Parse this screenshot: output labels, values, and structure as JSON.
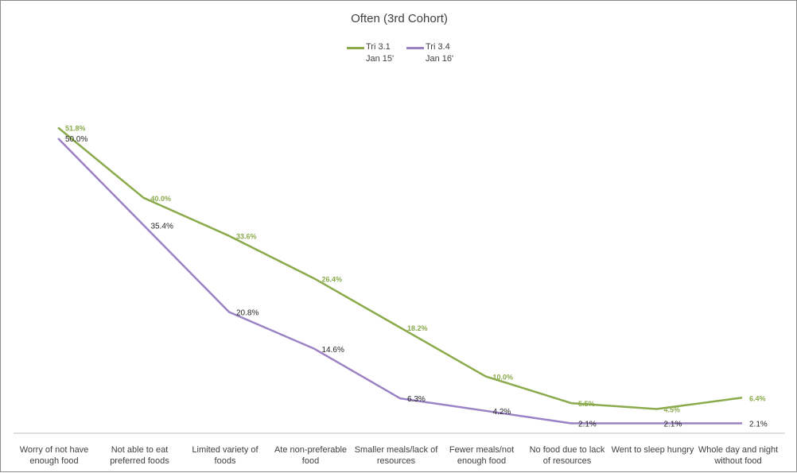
{
  "chart_data": {
    "type": "line",
    "title": "Often (3rd Cohort)",
    "categories": [
      [
        "Worry of not have",
        "enough food"
      ],
      [
        "Not able to eat",
        "preferred foods"
      ],
      [
        "Limited variety of",
        "foods"
      ],
      [
        "Ate non-preferable",
        "food"
      ],
      [
        "Smaller meals/lack of",
        "resources"
      ],
      [
        "Fewer meals/not",
        "enough food"
      ],
      [
        "No food due to lack",
        "of resources"
      ],
      [
        "Went to sleep hungry"
      ],
      [
        "Whole day and night",
        "without food"
      ]
    ],
    "series": [
      {
        "name": "Tri 3.1\nJan 15'",
        "name_lines": [
          "Tri 3.1",
          "Jan 15'"
        ],
        "color": "#8aaa4b",
        "values": [
          51.8,
          40.0,
          33.6,
          26.4,
          18.2,
          10.0,
          5.5,
          4.5,
          6.4
        ],
        "labels": [
          "51.8%",
          "40.0%",
          "33.6%",
          "26.4%",
          "18.2%",
          "10.0%",
          "5.5%",
          "4.5%",
          "6.4%"
        ]
      },
      {
        "name": "Tri 3.4\nJan 16'",
        "name_lines": [
          "Tri 3.4",
          "Jan 16'"
        ],
        "color": "#9b82c4",
        "values": [
          50.0,
          35.4,
          20.8,
          14.6,
          6.3,
          4.2,
          2.1,
          2.1,
          2.1
        ],
        "labels": [
          "50.0%",
          "35.4%",
          "20.8%",
          "14.6%",
          "6.3%",
          "4.2%",
          "2.1%",
          "2.1%",
          "2.1%"
        ]
      }
    ],
    "xlabel": "",
    "ylabel": "",
    "grid": false,
    "legend": "top-center"
  }
}
